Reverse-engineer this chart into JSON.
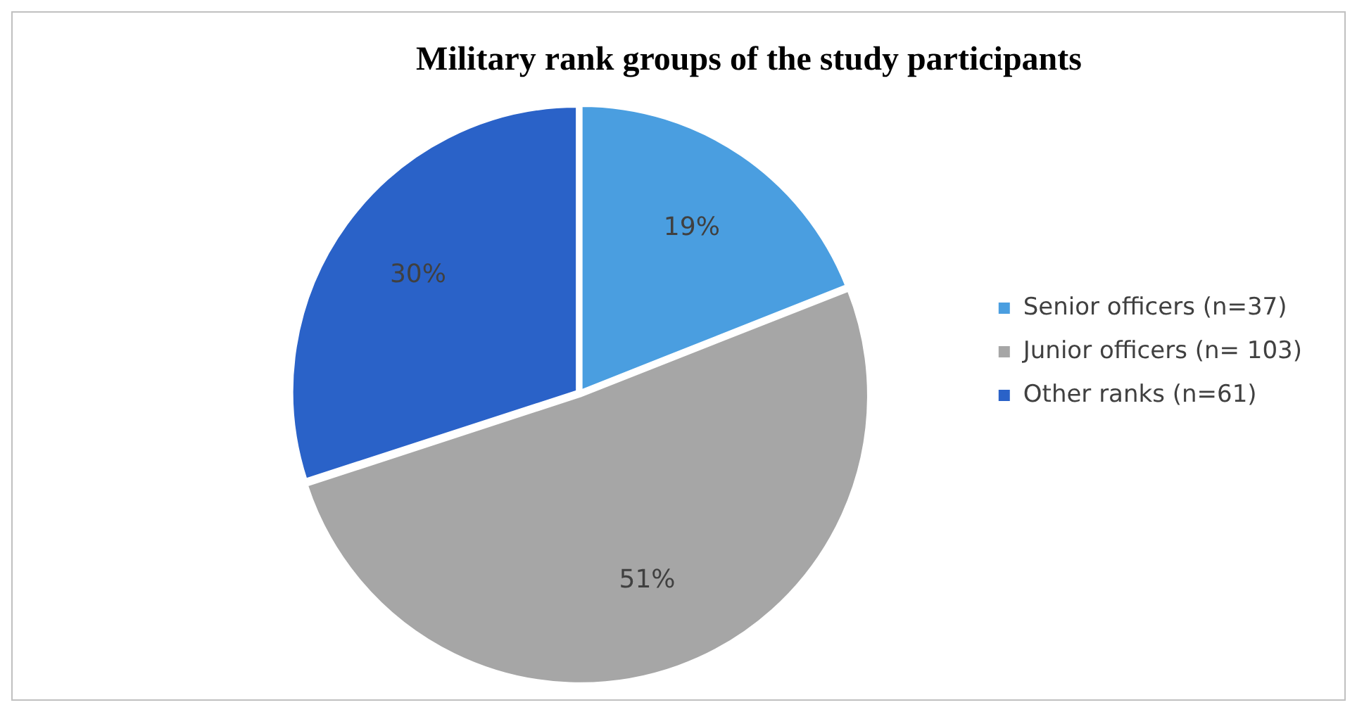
{
  "chart_data": {
    "type": "pie",
    "title": "Military rank groups of the study participants",
    "categories": [
      "Senior officers (n=37)",
      "Junior officers (n= 103)",
      "Other ranks (n=61)"
    ],
    "values": [
      19,
      51,
      30
    ],
    "colors": [
      "#4a9ee0",
      "#a6a6a6",
      "#2a62c8"
    ],
    "value_labels": [
      "19%",
      "51%",
      "30%"
    ],
    "legend": "right"
  }
}
